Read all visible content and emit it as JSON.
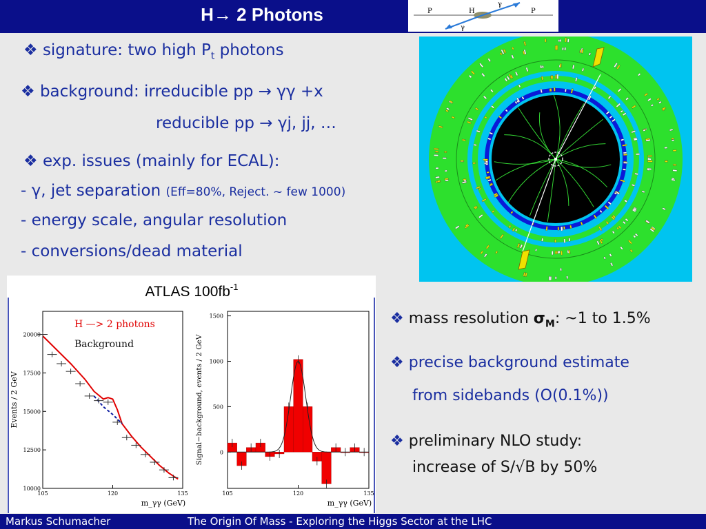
{
  "header": {
    "title": "H→ 2 Photons",
    "feynman": {
      "p_left": "P",
      "p_right": "P",
      "higgs": "H",
      "gamma_top": "γ",
      "gamma_bottom": "γ"
    }
  },
  "bullets": {
    "signature": {
      "prefix": "signature:  two high P",
      "sub": "t",
      "suffix": " photons"
    },
    "background": {
      "line1": "background: irreducible   pp → γγ +x",
      "line2": "reducible     pp → γj, jj, …"
    },
    "exp": {
      "head": "exp. issues (mainly for ECAL):",
      "l1_main": "- γ, jet separation ",
      "l1_small": "(Eff=80%, Reject. ~ few 1000)",
      "l2": "- energy scale, angular resolution",
      "l3": "- conversions/dead material"
    },
    "mass": {
      "prefix": "mass resolution ",
      "sigma": "σ",
      "sub": "M",
      "suffix": ": ~1 to 1.5%"
    },
    "precise": {
      "l1": "precise background estimate",
      "l2": "from sidebands (O(0.1%))"
    },
    "nlo": {
      "l1": "preliminary NLO study:",
      "l2": "increase of S/√B by 50%"
    }
  },
  "plot_caption": {
    "text": "ATLAS 100fb",
    "sup": "-1"
  },
  "chart_data": [
    {
      "type": "line",
      "ylabel": "Events / 2 GeV",
      "xlabel": "m_γγ (GeV)",
      "legend": [
        "H —> 2 photons",
        "Background"
      ],
      "xlim": [
        105,
        135
      ],
      "ylim": [
        10000,
        21500
      ],
      "xticks": [
        105,
        120,
        135
      ],
      "yticks": [
        10000,
        12500,
        15000,
        17500,
        20000
      ],
      "series": [
        {
          "name": "H —> 2 photons",
          "color": "#e00000",
          "x": [
            105,
            108,
            111,
            114,
            116,
            118,
            119,
            120,
            121,
            122,
            124,
            126,
            128,
            130,
            132,
            134
          ],
          "y": [
            19900,
            19000,
            18100,
            17100,
            16300,
            15800,
            15900,
            15800,
            15100,
            14200,
            13400,
            12700,
            12100,
            11500,
            11000,
            10600
          ]
        },
        {
          "name": "Background",
          "color": "#0a1aa0",
          "dashed": true,
          "x": [
            116,
            118,
            120,
            122
          ],
          "y": [
            16000,
            15300,
            14800,
            14200
          ]
        },
        {
          "name": "data",
          "x": [
            105,
            107,
            109,
            111,
            113,
            115,
            117,
            119,
            121,
            123,
            125,
            127,
            129,
            131,
            133
          ],
          "y": [
            20000,
            18700,
            18100,
            17600,
            16800,
            16000,
            15700,
            15600,
            14300,
            13300,
            12800,
            12200,
            11700,
            11200,
            10700
          ]
        }
      ]
    },
    {
      "type": "bar",
      "ylabel": "Signal−background, events / 2 GeV",
      "xlabel": "m_γγ (GeV)",
      "xlim": [
        105,
        135
      ],
      "ylim": [
        -400,
        1550
      ],
      "xticks": [
        105,
        120,
        135
      ],
      "yticks": [
        0,
        500,
        1000,
        1500
      ],
      "x": [
        106,
        108,
        110,
        112,
        114,
        116,
        118,
        120,
        122,
        124,
        126,
        128,
        130,
        132,
        134
      ],
      "values": [
        100,
        -150,
        50,
        100,
        -50,
        -20,
        500,
        1020,
        500,
        -100,
        -350,
        50,
        0,
        50,
        0
      ],
      "gaussian": {
        "mean": 120,
        "sigma": 1.6,
        "amplitude": 1000
      }
    }
  ],
  "footer": {
    "author": "Markus  Schumacher",
    "talk": "The Origin Of Mass - Exploring the Higgs Sector at the LHC"
  }
}
